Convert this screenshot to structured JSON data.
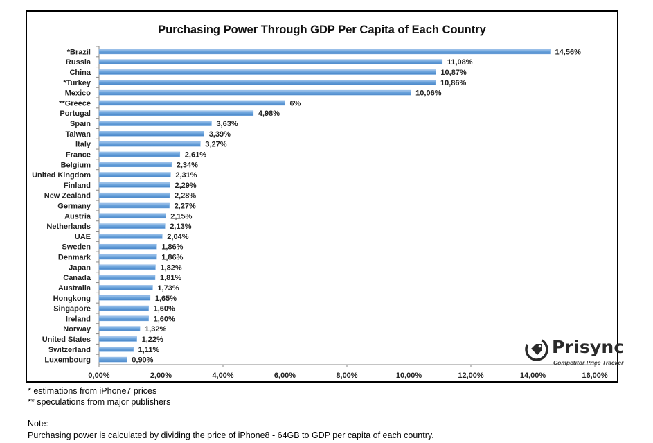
{
  "chart_data": {
    "type": "bar",
    "orientation": "horizontal",
    "title": "Purchasing Power Through GDP Per Capita of Each Country",
    "categories": [
      "*Brazil",
      "Russia",
      "China",
      "*Turkey",
      "Mexico",
      "**Greece",
      "Portugal",
      "Spain",
      "Taiwan",
      "Italy",
      "France",
      "Belgium",
      "United Kingdom",
      "Finland",
      "New Zealand",
      "Germany",
      "Austria",
      "Netherlands",
      "UAE",
      "Sweden",
      "Denmark",
      "Japan",
      "Canada",
      "Australia",
      "Hongkong",
      "Singapore",
      "Ireland",
      "Norway",
      "United States",
      "Switzerland",
      "Luxembourg"
    ],
    "values": [
      14.56,
      11.08,
      10.87,
      10.86,
      10.06,
      6,
      4.98,
      3.63,
      3.39,
      3.27,
      2.61,
      2.34,
      2.31,
      2.29,
      2.28,
      2.27,
      2.15,
      2.13,
      2.04,
      1.86,
      1.86,
      1.82,
      1.81,
      1.73,
      1.65,
      1.6,
      1.6,
      1.32,
      1.22,
      1.11,
      0.9
    ],
    "value_labels": [
      "14,56%",
      "11,08%",
      "10,87%",
      "10,86%",
      "10,06%",
      "6%",
      "4,98%",
      "3,63%",
      "3,39%",
      "3,27%",
      "2,61%",
      "2,34%",
      "2,31%",
      "2,29%",
      "2,28%",
      "2,27%",
      "2,15%",
      "2,13%",
      "2,04%",
      "1,86%",
      "1,86%",
      "1,82%",
      "1,81%",
      "1,73%",
      "1,65%",
      "1,60%",
      "1,60%",
      "1,32%",
      "1,22%",
      "1,11%",
      "0,90%"
    ],
    "xlim": [
      0,
      16
    ],
    "xticks": [
      0,
      2,
      4,
      6,
      8,
      10,
      12,
      14,
      16
    ],
    "xtick_labels": [
      "0,00%",
      "2,00%",
      "4,00%",
      "6,00%",
      "8,00%",
      "10,00%",
      "12,00%",
      "14,00%",
      "16,00%"
    ],
    "xlabel": "",
    "ylabel": "",
    "grid": false,
    "legend": "none",
    "bar_color": "#5b9bd5"
  },
  "footnotes": {
    "line1": "* estimations from iPhone7 prices",
    "line2": "** speculations from major publishers",
    "note_heading": "Note:",
    "note_text": "Purchasing power is calculated by dividing the price of iPhone8 - 64GB to GDP per capita of each country."
  },
  "logo": {
    "wordmark": "Prisync",
    "tagline": "Competitor Price Tracker",
    "icon": "price-tag-icon"
  }
}
